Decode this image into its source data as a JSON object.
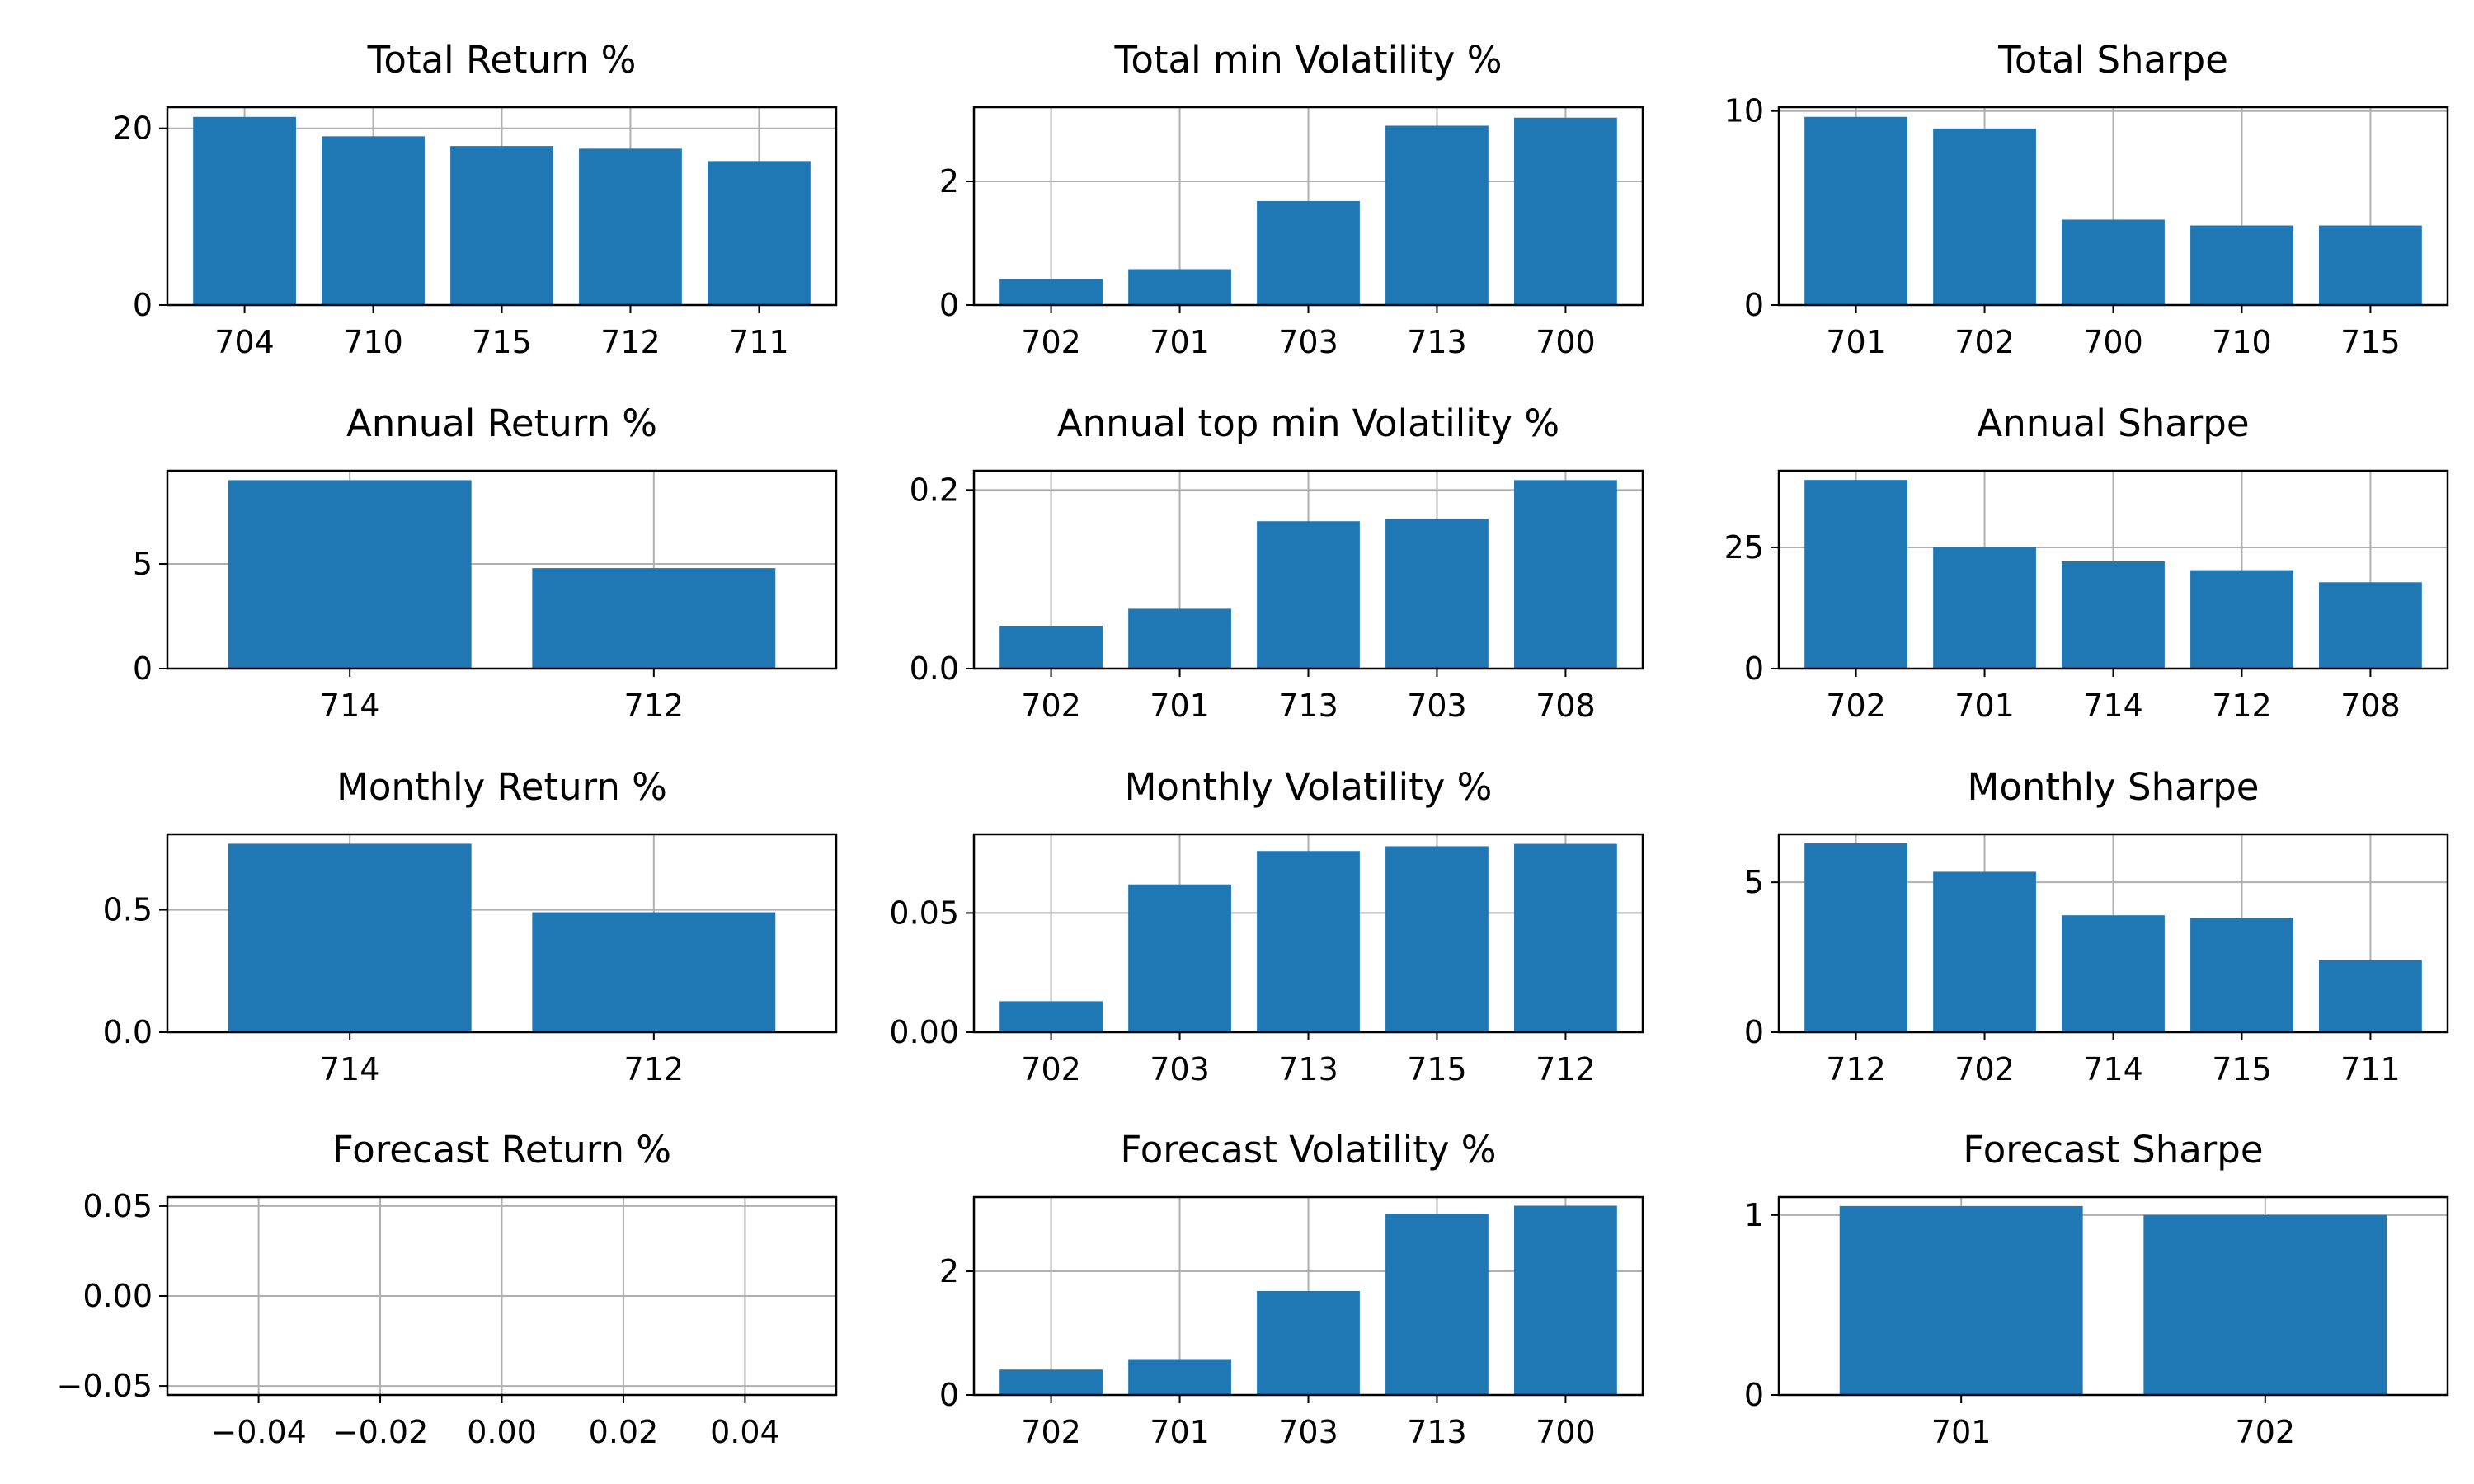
{
  "colors": {
    "bar": "#1f77b4",
    "grid": "#b0b0b0",
    "axis": "#000000",
    "background": "#ffffff"
  },
  "chart_data": [
    {
      "type": "bar",
      "title": "Total Return %",
      "categories": [
        "704",
        "710",
        "715",
        "712",
        "711"
      ],
      "values": [
        21.3,
        19.1,
        18.0,
        17.7,
        16.3
      ],
      "ylim": [
        0,
        22.4
      ],
      "yticks": [
        0,
        20
      ],
      "ytick_labels": [
        "0",
        "20"
      ],
      "grid": true
    },
    {
      "type": "bar",
      "title": "Total min Volatility %",
      "categories": [
        "702",
        "701",
        "703",
        "713",
        "700"
      ],
      "values": [
        0.42,
        0.58,
        1.68,
        2.9,
        3.03
      ],
      "ylim": [
        0,
        3.2
      ],
      "yticks": [
        0,
        2
      ],
      "ytick_labels": [
        "0",
        "2"
      ],
      "grid": true
    },
    {
      "type": "bar",
      "title": "Total Sharpe",
      "categories": [
        "701",
        "702",
        "700",
        "710",
        "715"
      ],
      "values": [
        9.7,
        9.1,
        4.4,
        4.1,
        4.1
      ],
      "ylim": [
        0,
        10.2
      ],
      "yticks": [
        0,
        10
      ],
      "ytick_labels": [
        "0",
        "10"
      ],
      "grid": true
    },
    {
      "type": "bar",
      "title": "Annual Return %",
      "categories": [
        "714",
        "712"
      ],
      "values": [
        9.0,
        4.8
      ],
      "ylim": [
        0,
        9.45
      ],
      "yticks": [
        0,
        5
      ],
      "ytick_labels": [
        "0",
        "5"
      ],
      "grid": true
    },
    {
      "type": "bar",
      "title": "Annual top min Volatility %",
      "categories": [
        "702",
        "701",
        "713",
        "703",
        "708"
      ],
      "values": [
        0.048,
        0.067,
        0.165,
        0.168,
        0.211
      ],
      "ylim": [
        0,
        0.2215
      ],
      "yticks": [
        0,
        0.2
      ],
      "ytick_labels": [
        "0.0",
        "0.2"
      ],
      "grid": true
    },
    {
      "type": "bar",
      "title": "Annual Sharpe",
      "categories": [
        "702",
        "701",
        "714",
        "712",
        "708"
      ],
      "values": [
        38.9,
        25.0,
        22.1,
        20.3,
        17.8
      ],
      "ylim": [
        0,
        40.8
      ],
      "yticks": [
        0,
        25
      ],
      "ytick_labels": [
        "0",
        "25"
      ],
      "grid": true
    },
    {
      "type": "bar",
      "title": "Monthly Return %",
      "categories": [
        "714",
        "712"
      ],
      "values": [
        0.77,
        0.49
      ],
      "ylim": [
        0,
        0.8085
      ],
      "yticks": [
        0,
        0.5
      ],
      "ytick_labels": [
        "0.0",
        "0.5"
      ],
      "grid": true
    },
    {
      "type": "bar",
      "title": "Monthly Volatility %",
      "categories": [
        "702",
        "703",
        "713",
        "715",
        "712"
      ],
      "values": [
        0.013,
        0.062,
        0.076,
        0.078,
        0.079
      ],
      "ylim": [
        0,
        0.083
      ],
      "yticks": [
        0,
        0.05
      ],
      "ytick_labels": [
        "0.00",
        "0.05"
      ],
      "grid": true
    },
    {
      "type": "bar",
      "title": "Monthly Sharpe",
      "categories": [
        "712",
        "702",
        "714",
        "715",
        "711"
      ],
      "values": [
        6.3,
        5.35,
        3.9,
        3.8,
        2.4
      ],
      "ylim": [
        0,
        6.6
      ],
      "yticks": [
        0,
        5
      ],
      "ytick_labels": [
        "0",
        "5"
      ],
      "grid": true
    },
    {
      "type": "empty",
      "title": "Forecast Return %",
      "categories": [],
      "values": [],
      "xlim": [
        -0.055,
        0.055
      ],
      "ylim": [
        -0.055,
        0.055
      ],
      "xticks": [
        -0.04,
        -0.02,
        0,
        0.02,
        0.04
      ],
      "xtick_labels": [
        "−0.04",
        "−0.02",
        "0.00",
        "0.02",
        "0.04"
      ],
      "yticks": [
        0.05,
        0,
        -0.05
      ],
      "ytick_labels": [
        "0.05",
        "0.00",
        "−0.05"
      ],
      "grid": true
    },
    {
      "type": "bar",
      "title": "Forecast Volatility %",
      "categories": [
        "702",
        "701",
        "703",
        "713",
        "700"
      ],
      "values": [
        0.41,
        0.58,
        1.68,
        2.93,
        3.06
      ],
      "ylim": [
        0,
        3.2
      ],
      "yticks": [
        0,
        2
      ],
      "ytick_labels": [
        "0",
        "2"
      ],
      "grid": true
    },
    {
      "type": "bar",
      "title": "Forecast Sharpe",
      "categories": [
        "701",
        "702"
      ],
      "values": [
        1.05,
        1.0
      ],
      "ylim": [
        0,
        1.1
      ],
      "yticks": [
        0,
        1
      ],
      "ytick_labels": [
        "0",
        "1"
      ],
      "grid": true
    }
  ]
}
